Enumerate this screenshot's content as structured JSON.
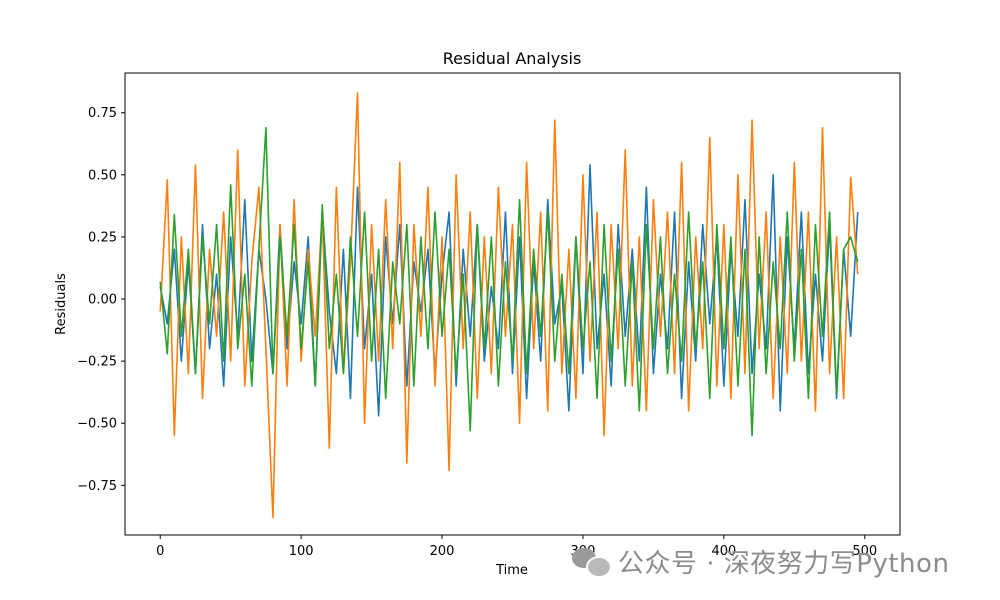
{
  "chart_data": {
    "type": "line",
    "title": "Residual Analysis",
    "xlabel": "Time",
    "ylabel": "Residuals",
    "xlim": [
      -25,
      525
    ],
    "ylim": [
      -0.95,
      0.91
    ],
    "xticks": [
      0,
      100,
      200,
      300,
      400,
      500
    ],
    "yticks": [
      -0.75,
      -0.5,
      -0.25,
      0.0,
      0.25,
      0.5,
      0.75
    ],
    "ytick_labels": [
      "−0.75",
      "−0.50",
      "−0.25",
      "0.00",
      "0.25",
      "0.50",
      "0.75"
    ],
    "grid": false,
    "legend": "none",
    "series": [
      {
        "color": "#1f77b4",
        "x_start": 0,
        "x_step": 5,
        "values": [
          0.05,
          -0.1,
          0.2,
          -0.25,
          0.15,
          -0.3,
          0.3,
          -0.2,
          0.1,
          -0.35,
          0.25,
          -0.15,
          0.4,
          -0.25,
          0.2,
          0.0,
          -0.3,
          0.3,
          -0.2,
          0.15,
          -0.1,
          0.25,
          -0.35,
          0.35,
          -0.05,
          -0.3,
          0.2,
          -0.4,
          0.45,
          -0.2,
          0.1,
          -0.47,
          0.25,
          -0.1,
          0.3,
          -0.35,
          0.15,
          -0.05,
          0.2,
          -0.3,
          0.1,
          0.35,
          -0.35,
          0.2,
          -0.15,
          0.3,
          -0.25,
          0.05,
          -0.2,
          0.35,
          -0.3,
          0.25,
          -0.4,
          0.15,
          -0.25,
          0.4,
          -0.1,
          0.05,
          -0.45,
          0.25,
          -0.3,
          0.54,
          -0.2,
          0.1,
          -0.35,
          0.3,
          -0.15,
          0.2,
          -0.25,
          0.45,
          -0.3,
          0.1,
          -0.2,
          0.35,
          -0.4,
          0.15,
          -0.25,
          0.3,
          -0.1,
          0.25,
          -0.35,
          0.2,
          -0.15,
          0.4,
          -0.3,
          0.1,
          -0.2,
          0.5,
          -0.45,
          0.25,
          -0.2,
          0.35,
          -0.3,
          0.1,
          -0.25,
          0.3,
          -0.4,
          0.2,
          -0.15,
          0.35
        ]
      },
      {
        "color": "#ff7f0e",
        "x_start": 0,
        "x_step": 5,
        "values": [
          -0.05,
          0.48,
          -0.55,
          0.25,
          -0.3,
          0.54,
          -0.4,
          0.2,
          -0.15,
          0.35,
          -0.25,
          0.6,
          -0.35,
          0.15,
          0.45,
          -0.2,
          -0.88,
          0.3,
          -0.35,
          0.4,
          -0.25,
          0.2,
          -0.15,
          0.35,
          -0.6,
          0.45,
          -0.3,
          0.15,
          0.83,
          -0.5,
          0.3,
          -0.25,
          0.4,
          -0.2,
          0.55,
          -0.66,
          0.3,
          -0.15,
          0.45,
          -0.35,
          0.25,
          -0.69,
          0.5,
          -0.2,
          0.35,
          -0.4,
          0.25,
          -0.3,
          0.45,
          -0.15,
          0.3,
          -0.5,
          0.55,
          -0.2,
          0.35,
          -0.45,
          0.72,
          -0.3,
          0.2,
          -0.4,
          0.5,
          -0.25,
          0.35,
          -0.55,
          0.3,
          -0.2,
          0.6,
          -0.35,
          0.25,
          -0.45,
          0.4,
          -0.15,
          0.35,
          -0.3,
          0.55,
          -0.45,
          0.25,
          -0.2,
          0.65,
          -0.35,
          0.3,
          -0.4,
          0.5,
          -0.3,
          0.72,
          -0.2,
          0.35,
          -0.4,
          0.25,
          -0.3,
          0.55,
          -0.25,
          0.35,
          -0.45,
          0.69,
          -0.3,
          0.25,
          -0.4,
          0.49,
          0.1
        ]
      },
      {
        "color": "#2ca02c",
        "x_start": 0,
        "x_step": 5,
        "values": [
          0.07,
          -0.22,
          0.34,
          -0.15,
          0.2,
          -0.3,
          0.25,
          -0.1,
          0.3,
          -0.25,
          0.46,
          -0.2,
          0.1,
          -0.35,
          0.2,
          0.69,
          -0.3,
          0.25,
          -0.15,
          0.3,
          -0.2,
          0.15,
          -0.35,
          0.38,
          -0.2,
          0.1,
          -0.3,
          0.25,
          -0.15,
          0.35,
          -0.25,
          0.2,
          -0.4,
          0.15,
          -0.1,
          0.3,
          -0.35,
          0.25,
          -0.2,
          0.35,
          -0.15,
          0.2,
          -0.3,
          0.1,
          -0.53,
          0.3,
          -0.2,
          0.25,
          -0.35,
          0.15,
          -0.25,
          0.4,
          -0.3,
          0.2,
          -0.15,
          0.35,
          -0.25,
          0.1,
          -0.3,
          0.25,
          -0.2,
          0.15,
          -0.4,
          0.3,
          -0.25,
          0.2,
          -0.35,
          0.15,
          -0.45,
          0.3,
          -0.2,
          0.25,
          -0.3,
          0.1,
          -0.25,
          0.35,
          -0.2,
          0.15,
          -0.4,
          0.3,
          -0.2,
          0.25,
          -0.35,
          0.2,
          -0.55,
          0.25,
          -0.3,
          0.15,
          -0.2,
          0.35,
          -0.25,
          0.2,
          -0.4,
          0.3,
          -0.15,
          0.35,
          -0.38,
          0.2,
          0.25,
          0.15
        ]
      }
    ]
  },
  "watermark": {
    "icon": "wechat-icon",
    "text": "公众号 · 深夜努力写Python"
  }
}
